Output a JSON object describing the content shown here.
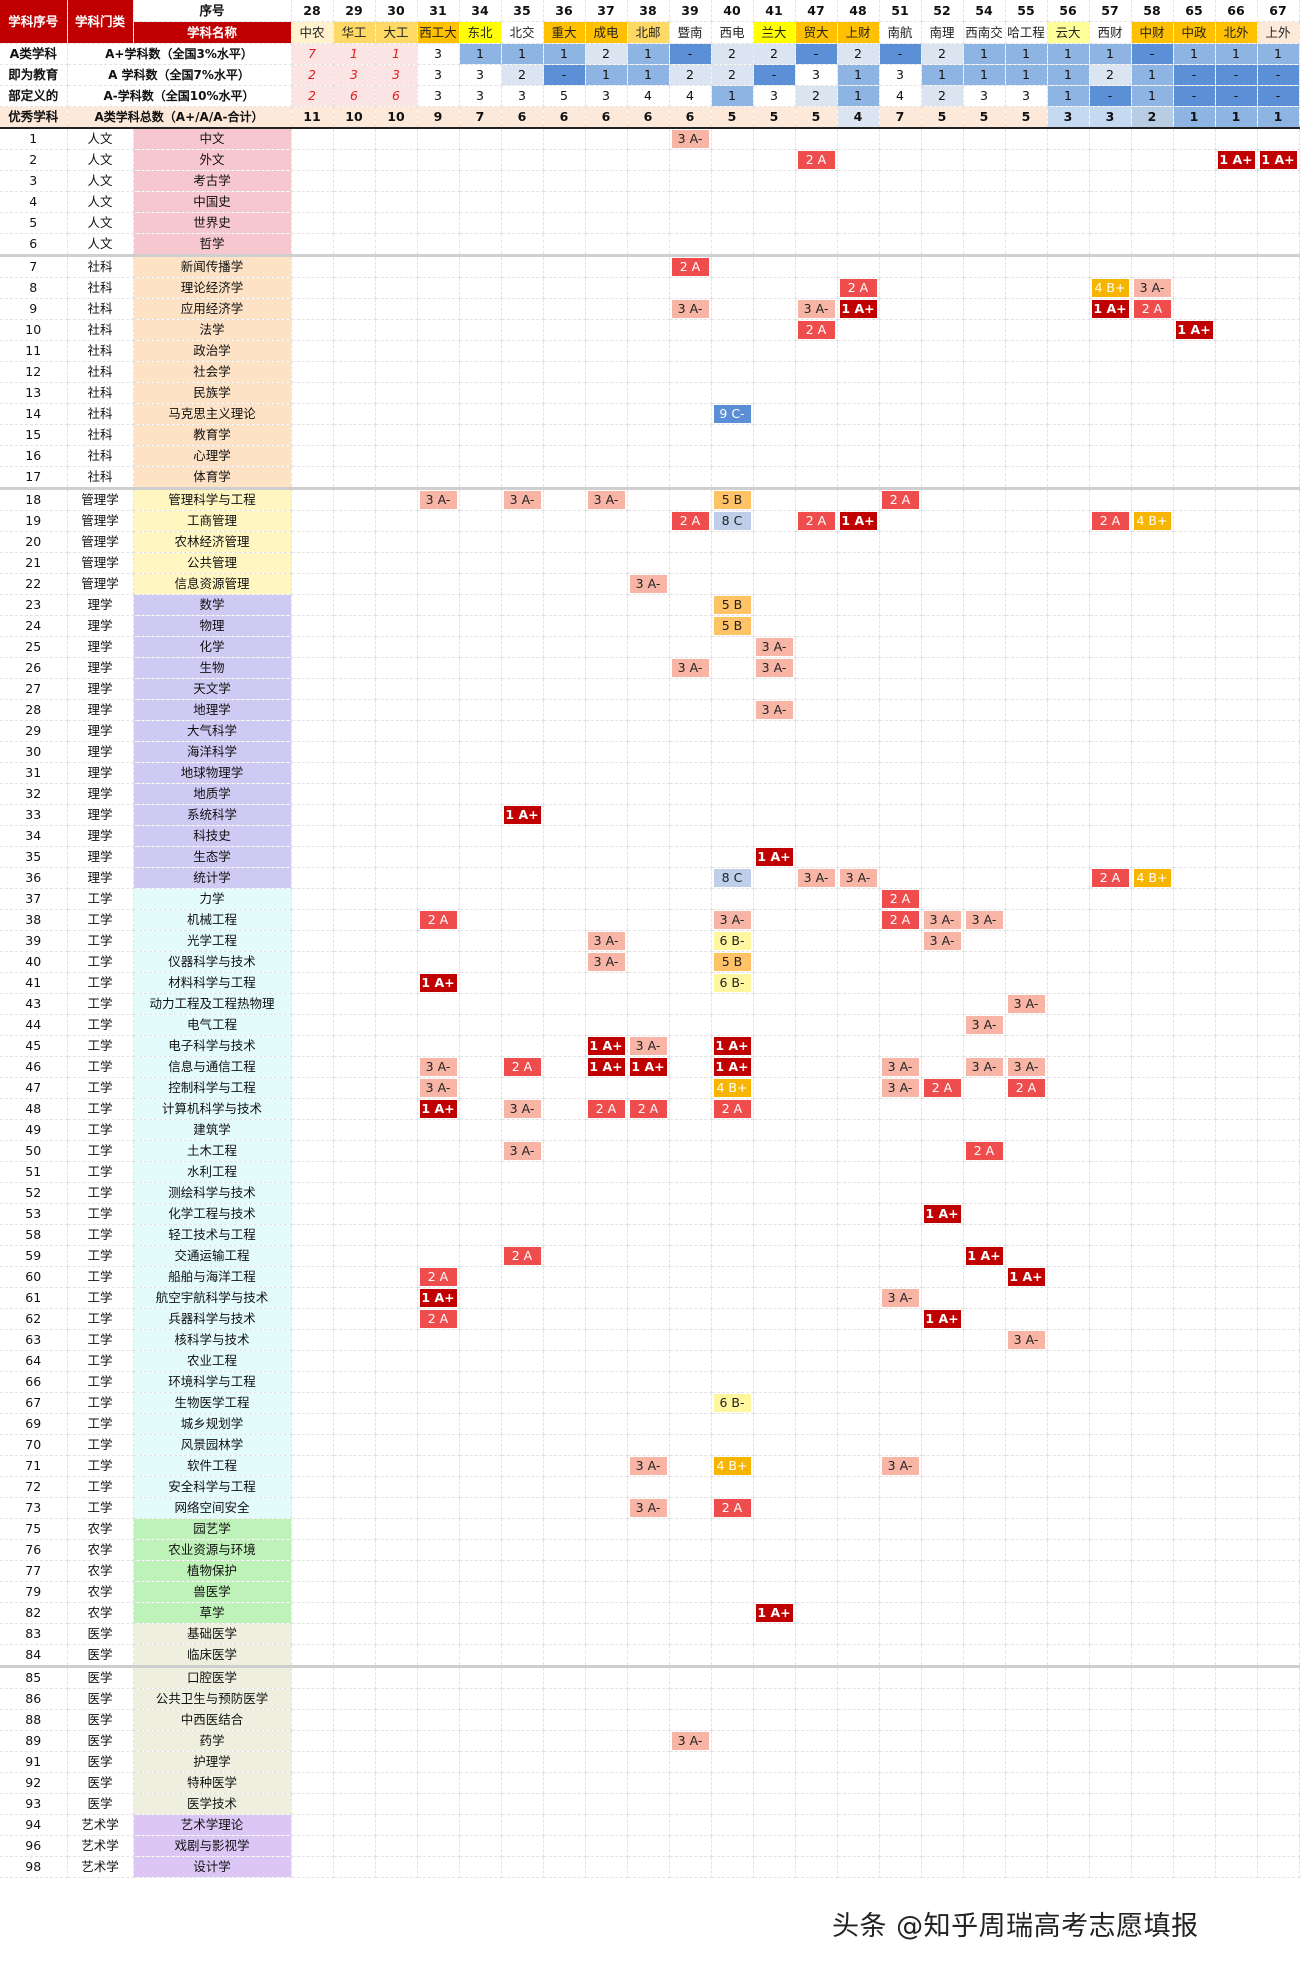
{
  "header": {
    "row1": {
      "col1": "学科序号",
      "col2": "学科门类",
      "col3": "序号"
    },
    "row2": {
      "col3": "学科名称"
    },
    "summary_rows": [
      {
        "c1": "A类学科",
        "c3": "A+学科数（全国3%水平）"
      },
      {
        "c1": "即为教育",
        "c3": "A 学科数（全国7%水平）"
      },
      {
        "c1": "部定义的",
        "c3": "A-学科数（全国10%水平）"
      },
      {
        "c1": "优秀学科",
        "c3": "A类学科总数（A+/A/A-合计）"
      }
    ]
  },
  "colors": {
    "red_header": "#c00000",
    "category_colors": {
      "人文": "#f7c7cf",
      "社科": "#fde2c5",
      "管理学": "#fff6c2",
      "理学": "#cfcaf4",
      "工学": "#e4fbfb",
      "农学": "#bff2b8",
      "医学": "#efefdf",
      "艺术学": "#dcc6f5"
    }
  },
  "schools": [
    {
      "num": "28",
      "name": "中农",
      "bg": "#fff2cc",
      "aplus": "7",
      "a": "2",
      "aminus": "2",
      "total": "11",
      "vstyle": "red",
      "tbg": "#fde9d9"
    },
    {
      "num": "29",
      "name": "华工",
      "bg": "#ffd966",
      "aplus": "1",
      "a": "3",
      "aminus": "6",
      "total": "10",
      "vstyle": "red",
      "tbg": "#fde9d9"
    },
    {
      "num": "30",
      "name": "大工",
      "bg": "#ffd966",
      "aplus": "1",
      "a": "3",
      "aminus": "6",
      "total": "10",
      "vstyle": "red",
      "tbg": "#fde9d9"
    },
    {
      "num": "31",
      "name": "西工大",
      "bg": "#ffc000",
      "aplus": "3",
      "a": "3",
      "aminus": "3",
      "total": "9",
      "tbg": "#fde9d9"
    },
    {
      "num": "34",
      "name": "东北",
      "bg": "#ffff00",
      "aplus": "1",
      "a": "3",
      "aminus": "3",
      "total": "7",
      "tbg": "#fde9d9"
    },
    {
      "num": "35",
      "name": "北交",
      "bg": "#ffffff",
      "aplus": "1",
      "a": "2",
      "aminus": "3",
      "total": "6",
      "tbg": "#fde9d9"
    },
    {
      "num": "36",
      "name": "重大",
      "bg": "#ffc000",
      "aplus": "1",
      "a": "-",
      "aminus": "5",
      "total": "6",
      "tbg": "#fde9d9"
    },
    {
      "num": "37",
      "name": "成电",
      "bg": "#ffc000",
      "aplus": "2",
      "a": "1",
      "aminus": "3",
      "total": "6",
      "tbg": "#fde9d9"
    },
    {
      "num": "38",
      "name": "北邮",
      "bg": "#ffd966",
      "aplus": "1",
      "a": "1",
      "aminus": "4",
      "total": "6",
      "tbg": "#fde9d9"
    },
    {
      "num": "39",
      "name": "暨南",
      "bg": "#ffffff",
      "aplus": "-",
      "a": "2",
      "aminus": "4",
      "total": "6",
      "tbg": "#fde9d9"
    },
    {
      "num": "40",
      "name": "西电",
      "bg": "#ffffff",
      "aplus": "2",
      "a": "2",
      "aminus": "1",
      "total": "5",
      "tbg": "#fde9d9"
    },
    {
      "num": "41",
      "name": "兰大",
      "bg": "#ffff00",
      "aplus": "2",
      "a": "-",
      "aminus": "3",
      "total": "5",
      "tbg": "#fde9d9"
    },
    {
      "num": "47",
      "name": "贸大",
      "bg": "#ffc000",
      "aplus": "-",
      "a": "3",
      "aminus": "2",
      "total": "5",
      "tbg": "#fde9d9"
    },
    {
      "num": "48",
      "name": "上财",
      "bg": "#ffc000",
      "aplus": "2",
      "a": "1",
      "aminus": "1",
      "total": "4",
      "tbg": "#dbe5f1"
    },
    {
      "num": "51",
      "name": "南航",
      "bg": "#ffffff",
      "aplus": "-",
      "a": "3",
      "aminus": "4",
      "total": "7",
      "tbg": "#fde9d9"
    },
    {
      "num": "52",
      "name": "南理",
      "bg": "#ffffff",
      "aplus": "2",
      "a": "1",
      "aminus": "2",
      "total": "5",
      "tbg": "#fde9d9"
    },
    {
      "num": "54",
      "name": "西南交",
      "bg": "#ffffff",
      "aplus": "1",
      "a": "1",
      "aminus": "3",
      "total": "5",
      "tbg": "#fde9d9"
    },
    {
      "num": "55",
      "name": "哈工程",
      "bg": "#ffffff",
      "aplus": "1",
      "a": "1",
      "aminus": "3",
      "total": "5",
      "tbg": "#fde9d9"
    },
    {
      "num": "56",
      "name": "云大",
      "bg": "#ffff99",
      "aplus": "1",
      "a": "1",
      "aminus": "1",
      "total": "3",
      "tbg": "#c5d9f1"
    },
    {
      "num": "57",
      "name": "西财",
      "bg": "#ffffff",
      "aplus": "1",
      "a": "2",
      "aminus": "-",
      "total": "3",
      "tbg": "#c5d9f1"
    },
    {
      "num": "58",
      "name": "中财",
      "bg": "#ffc000",
      "aplus": "-",
      "a": "1",
      "aminus": "1",
      "total": "2",
      "tbg": "#b8cce4"
    },
    {
      "num": "65",
      "name": "中政",
      "bg": "#ffc000",
      "aplus": "1",
      "a": "-",
      "aminus": "-",
      "total": "1",
      "tbg": "#8db4e2"
    },
    {
      "num": "66",
      "name": "北外",
      "bg": "#ffc000",
      "aplus": "1",
      "a": "-",
      "aminus": "-",
      "total": "1",
      "tbg": "#8db4e2"
    },
    {
      "num": "67",
      "name": "上外",
      "bg": "#fde9d9",
      "aplus": "1",
      "a": "-",
      "aminus": "-",
      "total": "1",
      "tbg": "#8db4e2"
    }
  ],
  "subjects": [
    {
      "id": "1",
      "cat": "人文",
      "name": "中文",
      "cells": {
        "39": "3 A-"
      }
    },
    {
      "id": "2",
      "cat": "人文",
      "name": "外文",
      "cells": {
        "47": "2 A",
        "66": "1 A+",
        "67": "1 A+"
      }
    },
    {
      "id": "3",
      "cat": "人文",
      "name": "考古学",
      "cells": {}
    },
    {
      "id": "4",
      "cat": "人文",
      "name": "中国史",
      "cells": {}
    },
    {
      "id": "5",
      "cat": "人文",
      "name": "世界史",
      "cells": {}
    },
    {
      "id": "6",
      "cat": "人文",
      "name": "哲学",
      "cells": {}
    },
    {
      "id": "7",
      "cat": "社科",
      "name": "新闻传播学",
      "cells": {
        "39": "2 A"
      },
      "grp": true
    },
    {
      "id": "8",
      "cat": "社科",
      "name": "理论经济学",
      "cells": {
        "48": "2 A",
        "57": "4 B+",
        "58": "3 A-"
      }
    },
    {
      "id": "9",
      "cat": "社科",
      "name": "应用经济学",
      "cells": {
        "39": "3 A-",
        "47": "3 A-",
        "48": "1 A+",
        "57": "1 A+",
        "58": "2 A"
      }
    },
    {
      "id": "10",
      "cat": "社科",
      "name": "法学",
      "cells": {
        "47": "2 A",
        "65": "1 A+"
      }
    },
    {
      "id": "11",
      "cat": "社科",
      "name": "政治学",
      "cells": {}
    },
    {
      "id": "12",
      "cat": "社科",
      "name": "社会学",
      "cells": {}
    },
    {
      "id": "13",
      "cat": "社科",
      "name": "民族学",
      "cells": {}
    },
    {
      "id": "14",
      "cat": "社科",
      "name": "马克思主义理论",
      "cells": {
        "40": "9 C-"
      }
    },
    {
      "id": "15",
      "cat": "社科",
      "name": "教育学",
      "cells": {}
    },
    {
      "id": "16",
      "cat": "社科",
      "name": "心理学",
      "cells": {}
    },
    {
      "id": "17",
      "cat": "社科",
      "name": "体育学",
      "cells": {}
    },
    {
      "id": "18",
      "cat": "管理学",
      "name": "管理科学与工程",
      "cells": {
        "31": "3 A-",
        "35": "3 A-",
        "37": "3 A-",
        "40": "5 B",
        "51": "2 A"
      },
      "grp": true
    },
    {
      "id": "19",
      "cat": "管理学",
      "name": "工商管理",
      "cells": {
        "39": "2 A",
        "40": "8 C",
        "47": "2 A",
        "48": "1 A+",
        "57": "2 A",
        "58": "4 B+"
      }
    },
    {
      "id": "20",
      "cat": "管理学",
      "name": "农林经济管理",
      "cells": {}
    },
    {
      "id": "21",
      "cat": "管理学",
      "name": "公共管理",
      "cells": {}
    },
    {
      "id": "22",
      "cat": "管理学",
      "name": "信息资源管理",
      "cells": {
        "38": "3 A-"
      }
    },
    {
      "id": "23",
      "cat": "理学",
      "name": "数学",
      "cells": {
        "40": "5 B"
      }
    },
    {
      "id": "24",
      "cat": "理学",
      "name": "物理",
      "cells": {
        "40": "5 B"
      }
    },
    {
      "id": "25",
      "cat": "理学",
      "name": "化学",
      "cells": {
        "41": "3 A-"
      }
    },
    {
      "id": "26",
      "cat": "理学",
      "name": "生物",
      "cells": {
        "39": "3 A-",
        "41": "3 A-"
      }
    },
    {
      "id": "27",
      "cat": "理学",
      "name": "天文学",
      "cells": {}
    },
    {
      "id": "28",
      "cat": "理学",
      "name": "地理学",
      "cells": {
        "41": "3 A-"
      }
    },
    {
      "id": "29",
      "cat": "理学",
      "name": "大气科学",
      "cells": {}
    },
    {
      "id": "30",
      "cat": "理学",
      "name": "海洋科学",
      "cells": {}
    },
    {
      "id": "31",
      "cat": "理学",
      "name": "地球物理学",
      "cells": {}
    },
    {
      "id": "32",
      "cat": "理学",
      "name": "地质学",
      "cells": {}
    },
    {
      "id": "33",
      "cat": "理学",
      "name": "系统科学",
      "cells": {
        "35": "1 A+"
      }
    },
    {
      "id": "34",
      "cat": "理学",
      "name": "科技史",
      "cells": {}
    },
    {
      "id": "35",
      "cat": "理学",
      "name": "生态学",
      "cells": {
        "41": "1 A+"
      }
    },
    {
      "id": "36",
      "cat": "理学",
      "name": "统计学",
      "cells": {
        "40": "8 C",
        "47": "3 A-",
        "48": "3 A-",
        "57": "2 A",
        "58": "4 B+"
      }
    },
    {
      "id": "37",
      "cat": "工学",
      "name": "力学",
      "cells": {
        "51": "2 A"
      }
    },
    {
      "id": "38",
      "cat": "工学",
      "name": "机械工程",
      "cells": {
        "31": "2 A",
        "40": "3 A-",
        "51": "2 A",
        "52": "3 A-",
        "54": "3 A-"
      }
    },
    {
      "id": "39",
      "cat": "工学",
      "name": "光学工程",
      "cells": {
        "37": "3 A-",
        "40": "6 B-",
        "52": "3 A-"
      }
    },
    {
      "id": "40",
      "cat": "工学",
      "name": "仪器科学与技术",
      "cells": {
        "37": "3 A-",
        "40": "5 B"
      }
    },
    {
      "id": "41",
      "cat": "工学",
      "name": "材料科学与工程",
      "cells": {
        "31": "1 A+",
        "40": "6 B-"
      }
    },
    {
      "id": "43",
      "cat": "工学",
      "name": "动力工程及工程热物理",
      "cells": {
        "55": "3 A-"
      }
    },
    {
      "id": "44",
      "cat": "工学",
      "name": "电气工程",
      "cells": {
        "54": "3 A-"
      }
    },
    {
      "id": "45",
      "cat": "工学",
      "name": "电子科学与技术",
      "cells": {
        "37": "1 A+",
        "38": "3 A-",
        "40": "1 A+"
      }
    },
    {
      "id": "46",
      "cat": "工学",
      "name": "信息与通信工程",
      "cells": {
        "31": "3 A-",
        "35": "2 A",
        "37": "1 A+",
        "38": "1 A+",
        "40": "1 A+",
        "51": "3 A-",
        "54": "3 A-",
        "55": "3 A-"
      }
    },
    {
      "id": "47",
      "cat": "工学",
      "name": "控制科学与工程",
      "cells": {
        "31": "3 A-",
        "40": "4 B+",
        "51": "3 A-",
        "52": "2 A",
        "55": "2 A"
      }
    },
    {
      "id": "48",
      "cat": "工学",
      "name": "计算机科学与技术",
      "cells": {
        "31": "1 A+",
        "35": "3 A-",
        "37": "2 A",
        "38": "2 A",
        "40": "2 A"
      }
    },
    {
      "id": "49",
      "cat": "工学",
      "name": "建筑学",
      "cells": {}
    },
    {
      "id": "50",
      "cat": "工学",
      "name": "土木工程",
      "cells": {
        "35": "3 A-",
        "54": "2 A"
      }
    },
    {
      "id": "51",
      "cat": "工学",
      "name": "水利工程",
      "cells": {}
    },
    {
      "id": "52",
      "cat": "工学",
      "name": "测绘科学与技术",
      "cells": {}
    },
    {
      "id": "53",
      "cat": "工学",
      "name": "化学工程与技术",
      "cells": {
        "52": "1 A+"
      }
    },
    {
      "id": "58",
      "cat": "工学",
      "name": "轻工技术与工程",
      "cells": {}
    },
    {
      "id": "59",
      "cat": "工学",
      "name": "交通运输工程",
      "cells": {
        "35": "2 A",
        "54": "1 A+"
      }
    },
    {
      "id": "60",
      "cat": "工学",
      "name": "船舶与海洋工程",
      "cells": {
        "31": "2 A",
        "55": "1 A+"
      }
    },
    {
      "id": "61",
      "cat": "工学",
      "name": "航空宇航科学与技术",
      "cells": {
        "31": "1 A+",
        "51": "3 A-"
      }
    },
    {
      "id": "62",
      "cat": "工学",
      "name": "兵器科学与技术",
      "cells": {
        "31": "2 A",
        "52": "1 A+"
      }
    },
    {
      "id": "63",
      "cat": "工学",
      "name": "核科学与技术",
      "cells": {
        "55": "3 A-"
      }
    },
    {
      "id": "64",
      "cat": "工学",
      "name": "农业工程",
      "cells": {}
    },
    {
      "id": "66",
      "cat": "工学",
      "name": "环境科学与工程",
      "cells": {}
    },
    {
      "id": "67",
      "cat": "工学",
      "name": "生物医学工程",
      "cells": {
        "40": "6 B-"
      }
    },
    {
      "id": "69",
      "cat": "工学",
      "name": "城乡规划学",
      "cells": {}
    },
    {
      "id": "70",
      "cat": "工学",
      "name": "风景园林学",
      "cells": {}
    },
    {
      "id": "71",
      "cat": "工学",
      "name": "软件工程",
      "cells": {
        "38": "3 A-",
        "40": "4 B+",
        "51": "3 A-"
      }
    },
    {
      "id": "72",
      "cat": "工学",
      "name": "安全科学与工程",
      "cells": {}
    },
    {
      "id": "73",
      "cat": "工学",
      "name": "网络空间安全",
      "cells": {
        "38": "3 A-",
        "40": "2 A"
      }
    },
    {
      "id": "75",
      "cat": "农学",
      "name": "园艺学",
      "cells": {}
    },
    {
      "id": "76",
      "cat": "农学",
      "name": "农业资源与环境",
      "cells": {}
    },
    {
      "id": "77",
      "cat": "农学",
      "name": "植物保护",
      "cells": {}
    },
    {
      "id": "79",
      "cat": "农学",
      "name": "兽医学",
      "cells": {}
    },
    {
      "id": "82",
      "cat": "农学",
      "name": "草学",
      "cells": {
        "41": "1 A+"
      }
    },
    {
      "id": "83",
      "cat": "医学",
      "name": "基础医学",
      "cells": {}
    },
    {
      "id": "84",
      "cat": "医学",
      "name": "临床医学",
      "cells": {}
    },
    {
      "id": "85",
      "cat": "医学",
      "name": "口腔医学",
      "cells": {},
      "grp": true
    },
    {
      "id": "86",
      "cat": "医学",
      "name": "公共卫生与预防医学",
      "cells": {}
    },
    {
      "id": "88",
      "cat": "医学",
      "name": "中西医结合",
      "cells": {}
    },
    {
      "id": "89",
      "cat": "医学",
      "name": "药学",
      "cells": {
        "39": "3 A-"
      }
    },
    {
      "id": "91",
      "cat": "医学",
      "name": "护理学",
      "cells": {}
    },
    {
      "id": "92",
      "cat": "医学",
      "name": "特种医学",
      "cells": {}
    },
    {
      "id": "93",
      "cat": "医学",
      "name": "医学技术",
      "cells": {}
    },
    {
      "id": "94",
      "cat": "艺术学",
      "name": "艺术学理论",
      "cells": {}
    },
    {
      "id": "96",
      "cat": "艺术学",
      "name": "戏剧与影视学",
      "cells": {}
    },
    {
      "id": "98",
      "cat": "艺术学",
      "name": "设计学",
      "cells": {}
    }
  ],
  "watermark": "头条 @知乎周瑞高考志愿填报"
}
